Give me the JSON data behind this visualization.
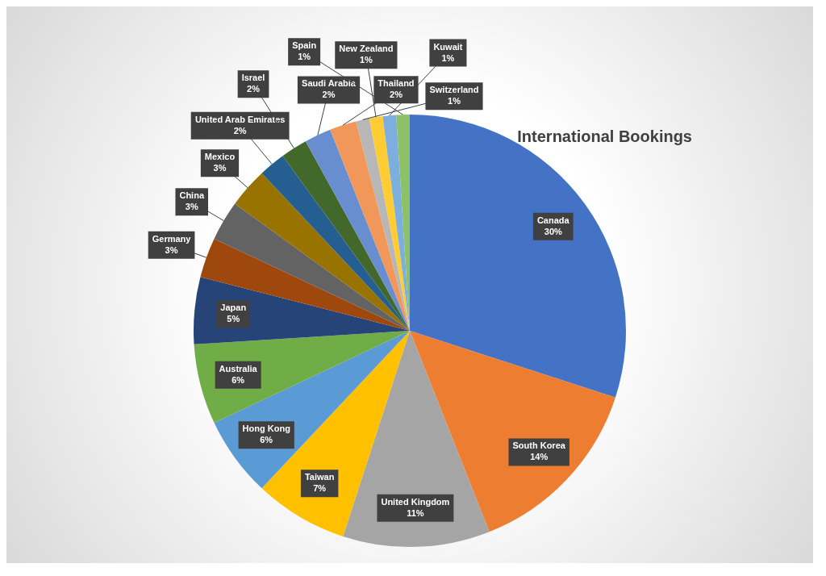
{
  "chart_data": {
    "type": "pie",
    "title": "International Bookings",
    "categories": [
      "Canada",
      "South Korea",
      "United Kingdom",
      "Taiwan",
      "Hong Kong",
      "Australia",
      "Japan",
      "Germany",
      "China",
      "Mexico",
      "United Arab Emirates",
      "Israel",
      "Saudi Arabia",
      "Thailand",
      "Switzerland",
      "New Zealand",
      "Kuwait",
      "Spain"
    ],
    "values": [
      30,
      14,
      11,
      7,
      6,
      6,
      5,
      3,
      3,
      3,
      2,
      2,
      2,
      2,
      1,
      1,
      1,
      1
    ],
    "colors": [
      "#4472c4",
      "#ed7d31",
      "#a5a5a5",
      "#ffc000",
      "#5b9bd5",
      "#70ad47",
      "#264478",
      "#9e480e",
      "#636363",
      "#997300",
      "#255e91",
      "#43682b",
      "#698ed0",
      "#f1975a",
      "#b7b7b7",
      "#ffcd33",
      "#7cafdd",
      "#8cc168"
    ],
    "value_labels": [
      "30%",
      "14%",
      "11%",
      "7%",
      "6%",
      "6%",
      "5%",
      "3%",
      "3%",
      "3%",
      "2%",
      "2%",
      "2%",
      "2%",
      "1%",
      "1%",
      "1%",
      "1%"
    ],
    "legend": false
  }
}
